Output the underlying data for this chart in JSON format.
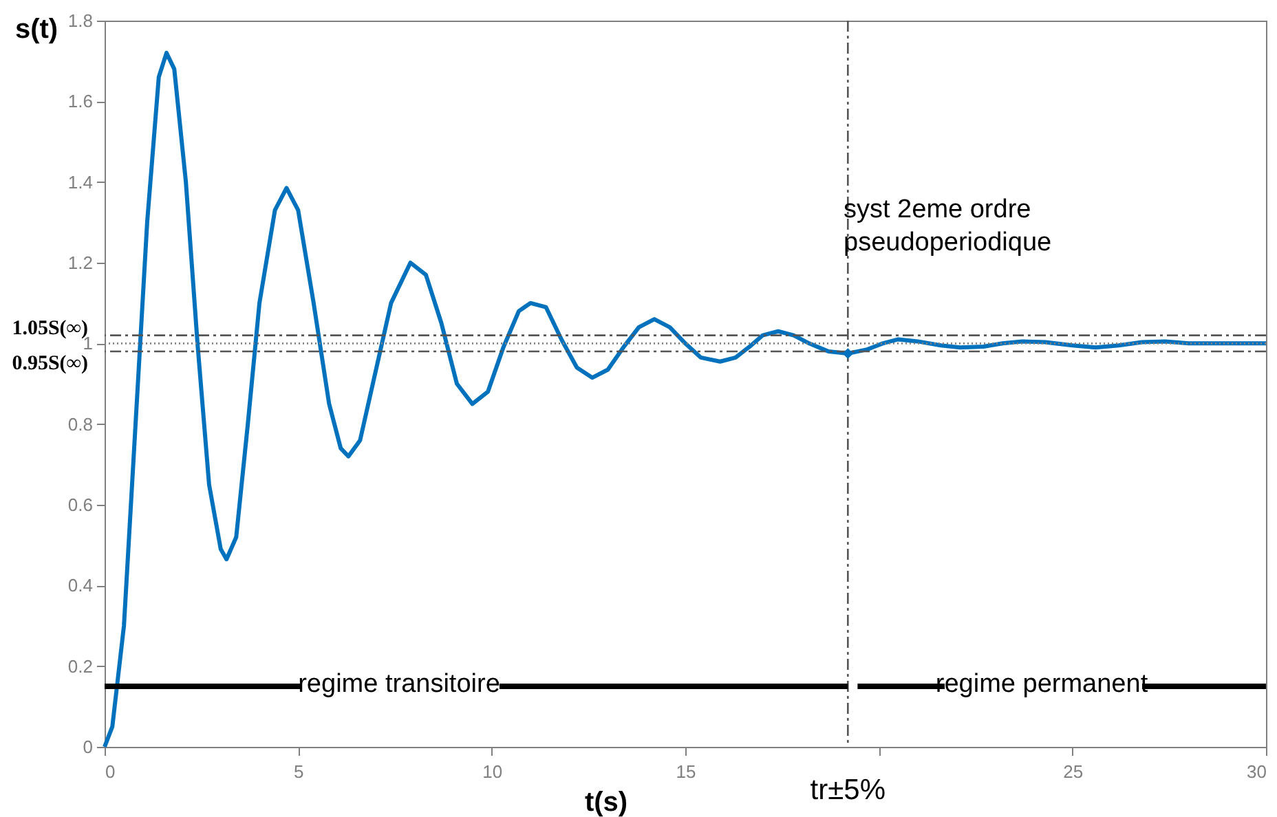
{
  "chart_data": {
    "type": "line",
    "xlabel": "t(s)",
    "ylabel": "s(t)",
    "xlim": [
      0,
      30
    ],
    "xticks": [
      0,
      5,
      10,
      15,
      {
        "value": 20,
        "label": null
      },
      25,
      30
    ],
    "ylim": [
      0,
      1.8
    ],
    "yticks": [
      0,
      0.2,
      0.4,
      0.6,
      0.8,
      1,
      1.2,
      1.4,
      1.6,
      1.8
    ],
    "series": [
      {
        "color": "#0072bd",
        "x": [
          0,
          0.2,
          0.5,
          0.8,
          1.1,
          1.4,
          1.6,
          1.8,
          2.1,
          2.4,
          2.7,
          3.0,
          3.15,
          3.4,
          3.7,
          4.0,
          4.4,
          4.7,
          5.0,
          5.4,
          5.8,
          6.1,
          6.3,
          6.6,
          7.0,
          7.4,
          7.9,
          8.3,
          8.7,
          9.1,
          9.5,
          9.9,
          10.3,
          10.7,
          11.0,
          11.4,
          11.8,
          12.2,
          12.6,
          13.0,
          13.4,
          13.8,
          14.2,
          14.6,
          15.0,
          15.4,
          15.9,
          16.3,
          16.7,
          17.0,
          17.4,
          17.8,
          18.2,
          18.7,
          19.2,
          19.7,
          20.1,
          20.5,
          21.0,
          21.6,
          22.1,
          22.7,
          23.2,
          23.7,
          24.3,
          25.0,
          25.6,
          26.2,
          26.8,
          27.4,
          28.0,
          29.0,
          30.0
        ],
        "values": [
          0,
          0.05,
          0.3,
          0.8,
          1.3,
          1.66,
          1.72,
          1.68,
          1.4,
          1.0,
          0.65,
          0.49,
          0.465,
          0.52,
          0.8,
          1.1,
          1.33,
          1.385,
          1.33,
          1.1,
          0.85,
          0.74,
          0.72,
          0.76,
          0.93,
          1.1,
          1.2,
          1.17,
          1.05,
          0.9,
          0.85,
          0.88,
          0.99,
          1.08,
          1.1,
          1.09,
          1.01,
          0.94,
          0.915,
          0.935,
          0.99,
          1.04,
          1.06,
          1.04,
          1.0,
          0.965,
          0.955,
          0.965,
          0.995,
          1.02,
          1.03,
          1.02,
          1.0,
          0.98,
          0.975,
          0.985,
          1.0,
          1.01,
          1.005,
          0.995,
          0.99,
          0.992,
          1.0,
          1.005,
          1.003,
          0.995,
          0.99,
          0.995,
          1.003,
          1.005,
          1.0,
          1.0,
          1.0
        ]
      },
      {
        "type": "scatter",
        "color": "#0072bd",
        "x": [
          19.2
        ],
        "values": [
          0.975
        ]
      },
      {
        "color": "#000000",
        "x": [
          0,
          5.1
        ],
        "values": [
          0.15,
          0.15
        ]
      },
      {
        "color": "#000000",
        "x": [
          10.2,
          19.2
        ],
        "values": [
          0.15,
          0.15
        ]
      },
      {
        "color": "#000000",
        "x": [
          19.45,
          21.7
        ],
        "values": [
          0.15,
          0.15
        ]
      },
      {
        "color": "#000000",
        "x": [
          26.8,
          30
        ],
        "values": [
          0.15,
          0.15
        ]
      }
    ],
    "ref_lines": [
      {
        "axis": "y",
        "value": 1.02,
        "label": "1.05S(∞)",
        "color": "#555555",
        "line_style": "dashdot"
      },
      {
        "axis": "y",
        "value": 0.98,
        "label": "0.95S(∞)",
        "color": "#555555",
        "line_style": "dashdot"
      },
      {
        "axis": "y",
        "value": 1,
        "label": null,
        "color": "#808080",
        "line_style": "dotted"
      },
      {
        "axis": "x",
        "value": 19.2,
        "label": "tr±5%",
        "color": "#555555",
        "line_style": "dashdot"
      }
    ],
    "annotations": [
      "regime transitoire",
      "regime permanent",
      "syst 2eme ordre\npseudoperiodique"
    ]
  }
}
